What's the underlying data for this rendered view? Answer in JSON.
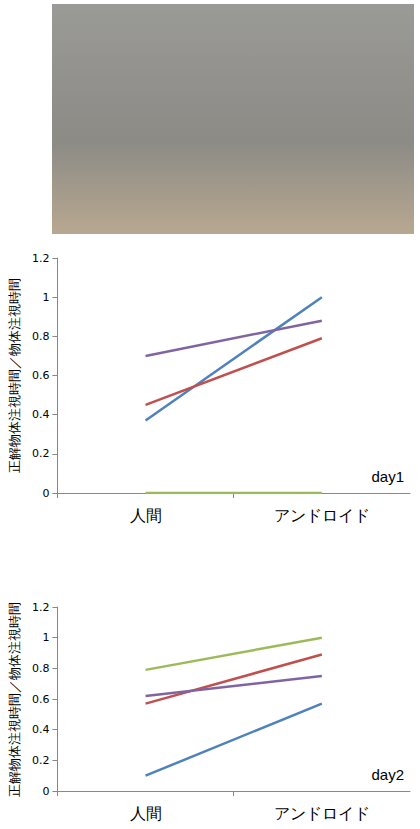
{
  "chart_data": [
    {
      "type": "line",
      "ylabel": "正解物体注視時間／物体注視時間",
      "annotation": "day1",
      "categories": [
        "人間",
        "アンドロイド"
      ],
      "series": [
        {
          "color": "#4F81BD",
          "values": [
            0.37,
            1.0
          ]
        },
        {
          "color": "#8064A2",
          "values": [
            0.7,
            0.88
          ]
        },
        {
          "color": "#C0504D",
          "values": [
            0.45,
            0.79
          ]
        },
        {
          "color": "#9BBB59",
          "values": [
            0,
            0
          ]
        }
      ],
      "ylim": [
        0,
        1.2
      ],
      "yticks": [
        0,
        0.2,
        0.4,
        0.6,
        0.8,
        1,
        1.2
      ],
      "grid": false
    },
    {
      "type": "line",
      "ylabel": "正解物体注視時間／物体注視時間",
      "annotation": "day2",
      "categories": [
        "人間",
        "アンドロイド"
      ],
      "series": [
        {
          "color": "#9BBB59",
          "values": [
            0.79,
            1.0
          ]
        },
        {
          "color": "#C0504D",
          "values": [
            0.57,
            0.89
          ]
        },
        {
          "color": "#8064A2",
          "values": [
            0.62,
            0.75
          ]
        },
        {
          "color": "#4F81BD",
          "values": [
            0.1,
            0.57
          ]
        }
      ],
      "ylim": [
        0,
        1.2
      ],
      "yticks": [
        0,
        0.2,
        0.4,
        0.6,
        0.8,
        1,
        1.2
      ],
      "grid": false
    }
  ]
}
